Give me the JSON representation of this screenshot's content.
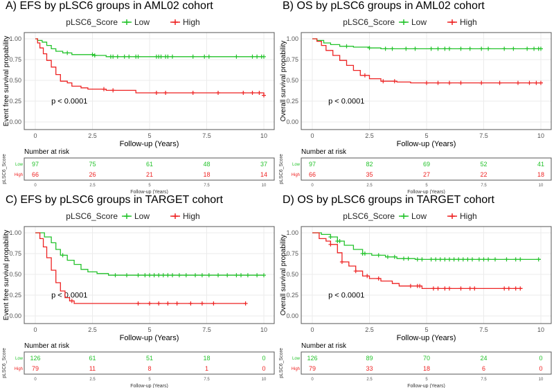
{
  "chart_data": [
    {
      "type": "line",
      "title": "A) EFS by pLSC6 groups in AML02 cohort",
      "legend_title": "pLSC6_Score",
      "legend": [
        "Low",
        "High"
      ],
      "legend_position": "top",
      "ylabel": "Event free survival propability",
      "xlabel": "Follow-up (Years)",
      "xlim": [
        0,
        10
      ],
      "ylim": [
        0,
        1
      ],
      "xticks": [
        "0",
        "2.5",
        "5",
        "7.5",
        "10"
      ],
      "yticks": [
        "0.00",
        "0.25",
        "0.50",
        "0.75",
        "1.00"
      ],
      "pvalue": "p < 0.0001",
      "series": [
        {
          "name": "Low",
          "color": "#22c22a",
          "steps": [
            [
              0,
              1
            ],
            [
              0.1,
              0.98
            ],
            [
              0.3,
              0.96
            ],
            [
              0.5,
              0.92
            ],
            [
              0.7,
              0.88
            ],
            [
              0.9,
              0.85
            ],
            [
              1.2,
              0.83
            ],
            [
              1.6,
              0.81
            ],
            [
              2.6,
              0.8
            ],
            [
              3.1,
              0.785
            ],
            [
              10,
              0.785
            ]
          ],
          "censor": [
            1.4,
            2.5,
            2.6,
            3.3,
            3.4,
            3.6,
            3.9,
            4.1,
            4.4,
            4.5,
            5.3,
            5.4,
            5.5,
            5.7,
            5.8,
            6,
            6.9,
            7.4,
            7.6,
            8.8,
            9.5,
            9.7,
            9.9,
            10
          ]
        },
        {
          "name": "High",
          "color": "#ee2222",
          "steps": [
            [
              0,
              1
            ],
            [
              0.1,
              0.95
            ],
            [
              0.2,
              0.89
            ],
            [
              0.35,
              0.82
            ],
            [
              0.5,
              0.74
            ],
            [
              0.7,
              0.66
            ],
            [
              0.9,
              0.57
            ],
            [
              1.1,
              0.49
            ],
            [
              1.4,
              0.47
            ],
            [
              1.6,
              0.43
            ],
            [
              2,
              0.41
            ],
            [
              2.3,
              0.395
            ],
            [
              3.1,
              0.38
            ],
            [
              4.4,
              0.35
            ],
            [
              9.95,
              0.35
            ],
            [
              10,
              0.32
            ]
          ],
          "censor": [
            3,
            3.4,
            5.3,
            5.7,
            6.9,
            8,
            9.1,
            9.5,
            9.8,
            10
          ]
        }
      ],
      "risk_table": {
        "title": "Number at risk",
        "ylabel": "pLSC6_Score",
        "rows": [
          {
            "label": "Low",
            "values": [
              97,
              75,
              61,
              48,
              37
            ]
          },
          {
            "label": "High",
            "values": [
              66,
              26,
              21,
              18,
              14
            ]
          }
        ],
        "xlabel": "Follow-up (Years)"
      }
    },
    {
      "type": "line",
      "title": "B) OS by pLSC6 groups in AML02 cohort",
      "legend_title": "pLSC6_Score",
      "legend": [
        "Low",
        "High"
      ],
      "legend_position": "top",
      "ylabel": "Overall survival propability",
      "xlabel": "Follow-up (Years)",
      "xlim": [
        0,
        10
      ],
      "ylim": [
        0,
        1
      ],
      "xticks": [
        "0",
        "2.5",
        "5",
        "7.5",
        "10"
      ],
      "yticks": [
        "0.00",
        "0.25",
        "0.50",
        "0.75",
        "1.00"
      ],
      "pvalue": "p < 0.0001",
      "series": [
        {
          "name": "Low",
          "color": "#22c22a",
          "steps": [
            [
              0,
              1
            ],
            [
              0.2,
              0.98
            ],
            [
              0.5,
              0.95
            ],
            [
              0.8,
              0.93
            ],
            [
              1.2,
              0.91
            ],
            [
              1.8,
              0.9
            ],
            [
              2.5,
              0.89
            ],
            [
              3,
              0.88
            ],
            [
              10,
              0.88
            ]
          ],
          "censor": [
            1.5,
            2.5,
            3.2,
            3.5,
            4.1,
            4.5,
            5.2,
            5.5,
            5.8,
            6,
            6.5,
            6.9,
            7.4,
            7.7,
            8.4,
            8.8,
            9.4,
            9.7,
            9.9,
            10
          ]
        },
        {
          "name": "High",
          "color": "#ee2222",
          "steps": [
            [
              0,
              1
            ],
            [
              0.2,
              0.97
            ],
            [
              0.4,
              0.92
            ],
            [
              0.6,
              0.86
            ],
            [
              0.9,
              0.8
            ],
            [
              1.2,
              0.74
            ],
            [
              1.5,
              0.68
            ],
            [
              1.8,
              0.62
            ],
            [
              2.1,
              0.56
            ],
            [
              2.5,
              0.52
            ],
            [
              3,
              0.49
            ],
            [
              3.7,
              0.48
            ],
            [
              4.3,
              0.47
            ],
            [
              10,
              0.47
            ]
          ],
          "censor": [
            2.3,
            3.1,
            3.6,
            5,
            5.5,
            6,
            6.5,
            7.4,
            8.2,
            9,
            9.5,
            9.8,
            10
          ]
        }
      ],
      "risk_table": {
        "title": "Number at risk",
        "ylabel": "pLSC6_Score",
        "rows": [
          {
            "label": "Low",
            "values": [
              97,
              82,
              69,
              52,
              41
            ]
          },
          {
            "label": "High",
            "values": [
              66,
              35,
              27,
              22,
              18
            ]
          }
        ],
        "xlabel": "Follow-up (Years)"
      }
    },
    {
      "type": "line",
      "title": "C) EFS by pLSC6 groups in TARGET cohort",
      "legend_title": "pLSC6_Score",
      "legend": [
        "Low",
        "High"
      ],
      "legend_position": "top",
      "ylabel": "Event free survival propability",
      "xlabel": "Follow-up (Years)",
      "xlim": [
        0,
        10
      ],
      "ylim": [
        0,
        1
      ],
      "xticks": [
        "0",
        "2.5",
        "5",
        "7.5",
        "10"
      ],
      "yticks": [
        "0.00",
        "0.25",
        "0.50",
        "0.75",
        "1.00"
      ],
      "pvalue": "p < 0.0001",
      "series": [
        {
          "name": "Low",
          "color": "#22c22a",
          "steps": [
            [
              0,
              1
            ],
            [
              0.4,
              0.95
            ],
            [
              0.7,
              0.88
            ],
            [
              0.9,
              0.8
            ],
            [
              1.1,
              0.73
            ],
            [
              1.4,
              0.67
            ],
            [
              1.7,
              0.62
            ],
            [
              2,
              0.56
            ],
            [
              2.3,
              0.53
            ],
            [
              2.7,
              0.51
            ],
            [
              3.2,
              0.49
            ],
            [
              10,
              0.49
            ]
          ],
          "censor": [
            1.2,
            3.5,
            4,
            4.5,
            4.8,
            5,
            5.2,
            5.4,
            5.6,
            5.8,
            6,
            6.3,
            6.6,
            7,
            7.3,
            7.6,
            8,
            8.4,
            8.8,
            9,
            9.3,
            9.7,
            10
          ]
        },
        {
          "name": "High",
          "color": "#ee2222",
          "steps": [
            [
              0,
              1
            ],
            [
              0.2,
              0.93
            ],
            [
              0.35,
              0.83
            ],
            [
              0.5,
              0.7
            ],
            [
              0.7,
              0.55
            ],
            [
              0.9,
              0.4
            ],
            [
              1.1,
              0.3
            ],
            [
              1.3,
              0.22
            ],
            [
              1.5,
              0.18
            ],
            [
              1.7,
              0.15
            ],
            [
              9.2,
              0.15
            ]
          ],
          "censor": [
            1.6,
            4.5,
            5,
            5.4,
            5.8,
            6.2,
            6.8,
            7.3,
            7.8,
            9.2
          ]
        }
      ],
      "risk_table": {
        "title": "Number at risk",
        "ylabel": "pLSC6_Score",
        "rows": [
          {
            "label": "Low",
            "values": [
              126,
              61,
              51,
              18,
              0
            ]
          },
          {
            "label": "High",
            "values": [
              79,
              11,
              8,
              1,
              0
            ]
          }
        ],
        "xlabel": "Follow-up (Years)"
      }
    },
    {
      "type": "line",
      "title": "D) OS by pLSC6 groups in TARGET cohort",
      "legend_title": "pLSC6_Score",
      "legend": [
        "Low",
        "High"
      ],
      "legend_position": "top",
      "ylabel": "Overall survival propability",
      "xlabel": "Follow-up (Years)",
      "xlim": [
        0,
        10
      ],
      "ylim": [
        0,
        1
      ],
      "xticks": [
        "0",
        "2.5",
        "5",
        "7.5",
        "10"
      ],
      "yticks": [
        "0.00",
        "0.25",
        "0.50",
        "0.75",
        "1.00"
      ],
      "pvalue": "p < 0.0001",
      "series": [
        {
          "name": "Low",
          "color": "#22c22a",
          "steps": [
            [
              0,
              1
            ],
            [
              0.4,
              0.98
            ],
            [
              0.8,
              0.95
            ],
            [
              1.1,
              0.9
            ],
            [
              1.4,
              0.85
            ],
            [
              1.8,
              0.8
            ],
            [
              2.2,
              0.75
            ],
            [
              2.6,
              0.73
            ],
            [
              3.2,
              0.71
            ],
            [
              3.7,
              0.69
            ],
            [
              4.5,
              0.68
            ],
            [
              10,
              0.68
            ]
          ],
          "censor": [
            0.8,
            1.1,
            1.2,
            2.2,
            2.3,
            2.9,
            3.3,
            3.6,
            4,
            4.2,
            4.6,
            4.8,
            5.2,
            5.4,
            5.6,
            5.8,
            6,
            6.2,
            6.4,
            6.6,
            6.8,
            7,
            7.3,
            7.5,
            7.7,
            8,
            8.5,
            8.9,
            9.1,
            9.9
          ]
        },
        {
          "name": "High",
          "color": "#ee2222",
          "steps": [
            [
              0,
              1
            ],
            [
              0.3,
              0.93
            ],
            [
              0.6,
              0.9
            ],
            [
              0.8,
              0.86
            ],
            [
              1.1,
              0.76
            ],
            [
              1.3,
              0.65
            ],
            [
              1.6,
              0.6
            ],
            [
              1.9,
              0.54
            ],
            [
              2.2,
              0.48
            ],
            [
              2.5,
              0.45
            ],
            [
              3,
              0.42
            ],
            [
              3.5,
              0.39
            ],
            [
              3.8,
              0.36
            ],
            [
              4.8,
              0.33
            ],
            [
              9.2,
              0.33
            ]
          ],
          "censor": [
            0.8,
            1.3,
            1.9,
            2.4,
            2.9,
            4.3,
            4.6,
            4.7,
            5.3,
            5.5,
            5.8,
            6,
            6.5,
            6.9,
            7.1,
            8.4,
            8.6,
            8.9,
            9.1
          ]
        }
      ],
      "risk_table": {
        "title": "Number at risk",
        "ylabel": "pLSC6_Score",
        "rows": [
          {
            "label": "Low",
            "values": [
              126,
              89,
              70,
              24,
              0
            ]
          },
          {
            "label": "High",
            "values": [
              79,
              33,
              18,
              6,
              0
            ]
          }
        ],
        "xlabel": "Follow-up (Years)"
      }
    }
  ]
}
